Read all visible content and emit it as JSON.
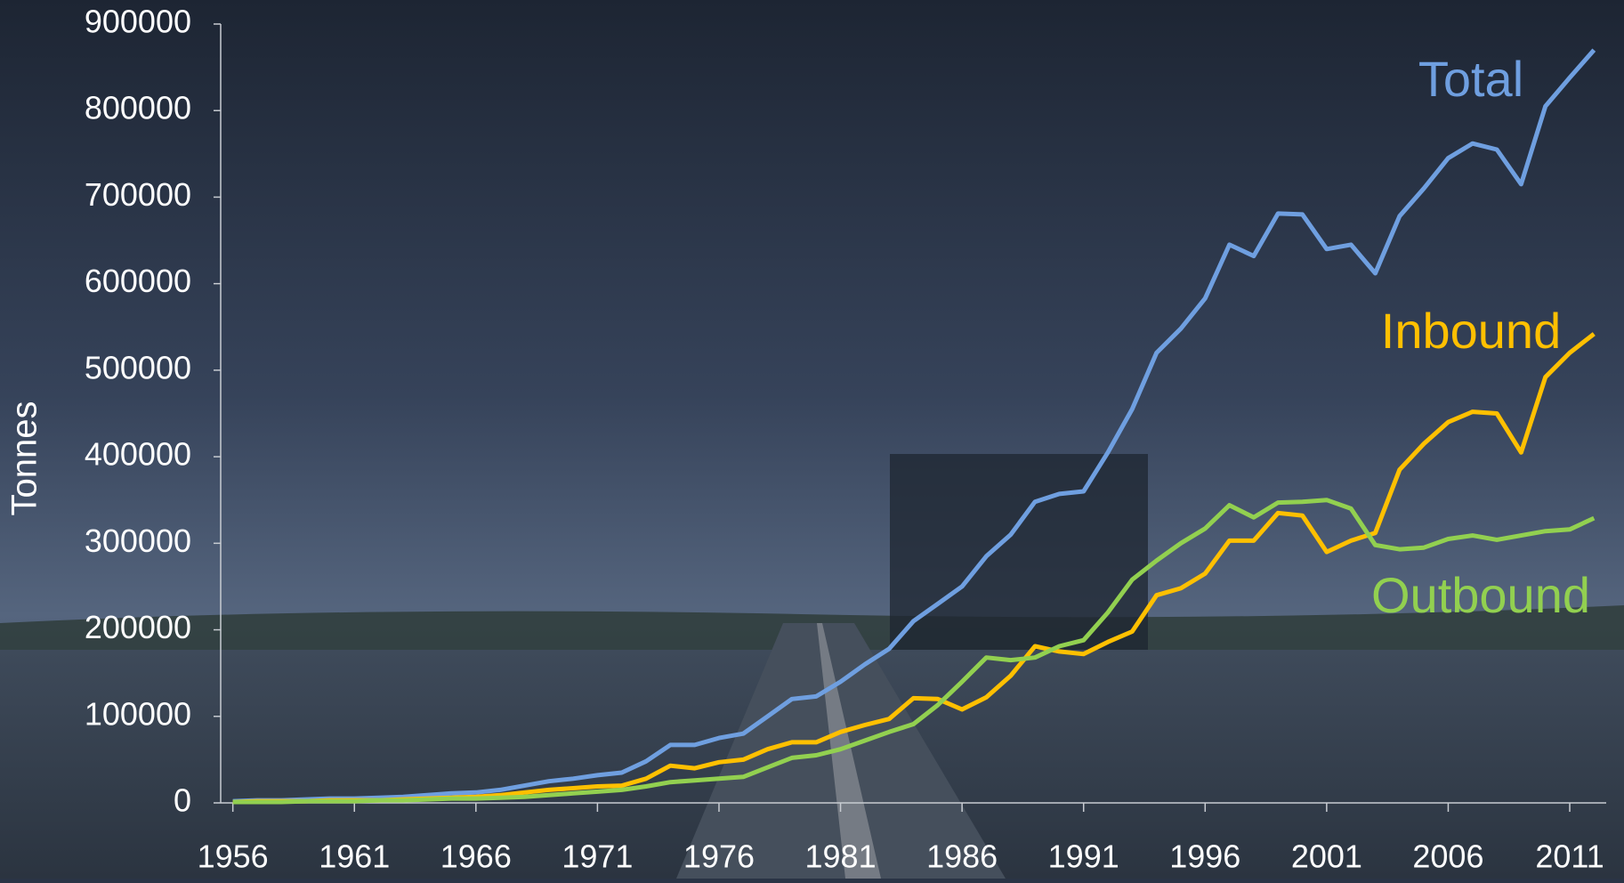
{
  "chart_data": {
    "type": "line",
    "y_label": "Tonnes",
    "x": [
      1956,
      1957,
      1958,
      1959,
      1960,
      1961,
      1962,
      1963,
      1964,
      1965,
      1966,
      1967,
      1968,
      1969,
      1970,
      1971,
      1972,
      1973,
      1974,
      1975,
      1976,
      1977,
      1978,
      1979,
      1980,
      1981,
      1982,
      1983,
      1984,
      1985,
      1986,
      1987,
      1988,
      1989,
      1990,
      1991,
      1992,
      1993,
      1994,
      1995,
      1996,
      1997,
      1998,
      1999,
      2000,
      2001,
      2002,
      2003,
      2004,
      2005,
      2006,
      2007,
      2008,
      2009,
      2010,
      2011,
      2012
    ],
    "xlim": [
      1955.5,
      2012.5
    ],
    "xticks": [
      1956,
      1961,
      1966,
      1971,
      1976,
      1981,
      1986,
      1991,
      1996,
      2001,
      2006,
      2011
    ],
    "ylim": [
      0,
      900000
    ],
    "yticks": [
      0,
      100000,
      200000,
      300000,
      400000,
      500000,
      600000,
      700000,
      800000,
      900000
    ],
    "grid": false,
    "series": [
      {
        "name": "Total",
        "color": "#6f9fe0",
        "values": [
          2000,
          3000,
          3000,
          4000,
          5000,
          5000,
          6000,
          7000,
          9000,
          11000,
          12000,
          15000,
          20000,
          25000,
          28000,
          32000,
          35000,
          48000,
          67000,
          67000,
          75000,
          80000,
          100000,
          120000,
          123000,
          140000,
          160000,
          178000,
          210000,
          230000,
          250000,
          285000,
          310000,
          348000,
          357000,
          360000,
          405000,
          455000,
          520000,
          548000,
          583000,
          645000,
          632000,
          681000,
          680000,
          640000,
          645000,
          612000,
          678000,
          710000,
          745000,
          762000,
          755000,
          715000,
          805000,
          838000,
          870000
        ]
      },
      {
        "name": "Inbound",
        "color": "#ffc000",
        "values": [
          1000,
          2000,
          2000,
          2000,
          3000,
          3000,
          3000,
          4000,
          5000,
          6000,
          7000,
          9000,
          12000,
          15000,
          17000,
          19000,
          20000,
          28000,
          43000,
          40000,
          47000,
          50000,
          62000,
          70000,
          70000,
          82000,
          90000,
          97000,
          121000,
          120000,
          108000,
          122000,
          147000,
          181000,
          175000,
          172000,
          186000,
          198000,
          240000,
          248000,
          265000,
          303000,
          303000,
          335000,
          332000,
          290000,
          303000,
          312000,
          385000,
          415000,
          440000,
          452000,
          450000,
          405000,
          492000,
          520000,
          542000
        ]
      },
      {
        "name": "Outbound",
        "color": "#92d050",
        "values": [
          1000,
          1000,
          1000,
          2000,
          2000,
          2000,
          3000,
          3000,
          4000,
          5000,
          5000,
          6000,
          7000,
          9000,
          11000,
          13000,
          15000,
          19000,
          24000,
          26000,
          28000,
          30000,
          41000,
          52000,
          55000,
          62000,
          72000,
          82000,
          91000,
          113000,
          140000,
          168000,
          165000,
          168000,
          181000,
          188000,
          220000,
          258000,
          280000,
          300000,
          317000,
          344000,
          330000,
          347000,
          348000,
          350000,
          340000,
          298000,
          293000,
          295000,
          305000,
          309000,
          304000,
          309000,
          314000,
          316000,
          329000
        ]
      }
    ]
  }
}
